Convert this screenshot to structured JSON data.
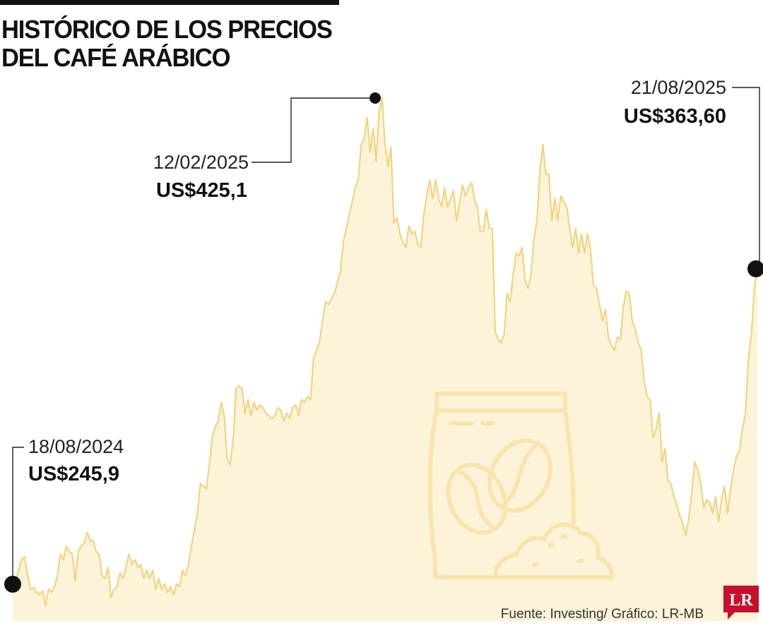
{
  "title_lines": [
    "HISTÓRICO DE LOS PRECIOS",
    "DEL CAFÉ ARÁBICO"
  ],
  "source": "Fuente: Investing/ Gráfico: LR-MB",
  "logo_text": "LR",
  "colors": {
    "line": "#f2d37f",
    "area": "#fdf3d8",
    "icon": "#f9e4ad",
    "logo": "#c8102e",
    "text": "#111111"
  },
  "icon": "coffee-bag-icon",
  "chart_data": {
    "type": "area",
    "title": "HISTÓRICO DE LOS PRECIOS DEL CAFÉ ARÁBICO",
    "xlabel": "",
    "ylabel": "",
    "x_range": [
      "18/08/2024",
      "21/08/2025"
    ],
    "ylim": [
      200,
      440
    ],
    "grid": false,
    "legend": "none",
    "annotations": [
      {
        "date": "18/08/2024",
        "value_label": "US$245,9",
        "value": 245.9,
        "index": 0
      },
      {
        "date": "12/02/2025",
        "value_label": "US$425,1",
        "value": 425.1,
        "index": 124
      },
      {
        "date": "21/08/2025",
        "value_label": "US$363,60",
        "value": 363.6,
        "index": 252
      }
    ],
    "values": [
      245.9,
      247.5,
      251,
      255,
      256,
      249,
      244,
      244.5,
      243,
      242,
      243.5,
      238,
      244,
      243,
      245,
      249,
      257,
      255,
      260,
      258,
      257,
      247,
      258,
      260,
      261,
      265,
      262,
      262,
      258,
      257,
      249,
      248,
      252,
      241,
      244,
      245,
      250,
      248,
      252,
      257,
      253,
      255,
      252,
      253,
      248,
      251,
      248,
      251,
      244,
      248,
      244,
      246,
      243,
      245,
      242,
      246,
      245,
      251,
      249,
      253,
      260,
      266,
      272,
      283,
      282,
      281,
      290,
      300,
      304,
      306,
      313,
      308,
      292,
      290,
      299,
      318,
      319,
      318,
      309,
      314,
      308,
      313,
      310,
      312,
      311,
      309,
      308,
      307,
      308,
      311,
      310,
      306,
      309,
      307,
      311,
      312,
      308,
      314,
      313,
      315,
      314,
      329,
      332,
      335,
      343,
      350,
      349,
      351,
      353,
      357,
      361,
      372,
      377,
      382,
      387,
      392,
      395,
      408,
      410,
      418,
      405,
      414,
      402,
      420,
      425.1,
      408,
      400,
      407,
      379,
      381,
      375,
      372,
      370,
      378,
      375,
      376,
      371,
      370,
      382,
      389,
      395,
      388,
      395,
      388,
      385,
      392,
      385,
      388,
      391,
      380,
      386,
      393,
      389,
      392,
      394,
      388,
      385,
      376,
      376,
      384,
      377,
      377,
      339,
      336,
      335,
      338,
      353,
      350,
      360,
      368,
      367,
      370,
      358,
      355,
      360,
      373,
      380,
      398,
      408,
      397,
      397,
      380,
      388,
      380,
      389,
      387,
      385,
      377,
      370,
      377,
      368,
      375,
      368,
      375,
      369,
      356,
      355,
      349,
      343,
      347,
      337,
      334,
      332,
      337,
      336,
      348,
      354,
      353,
      343,
      340,
      335,
      332,
      321,
      315,
      314,
      300,
      303,
      309,
      291,
      296,
      284,
      283,
      278,
      275,
      271,
      268,
      264,
      270,
      280,
      291,
      288,
      283,
      274,
      277,
      276,
      272,
      278,
      269,
      277,
      282,
      272,
      281,
      288,
      293,
      295,
      303,
      309,
      329,
      338,
      355,
      363.6
    ]
  }
}
